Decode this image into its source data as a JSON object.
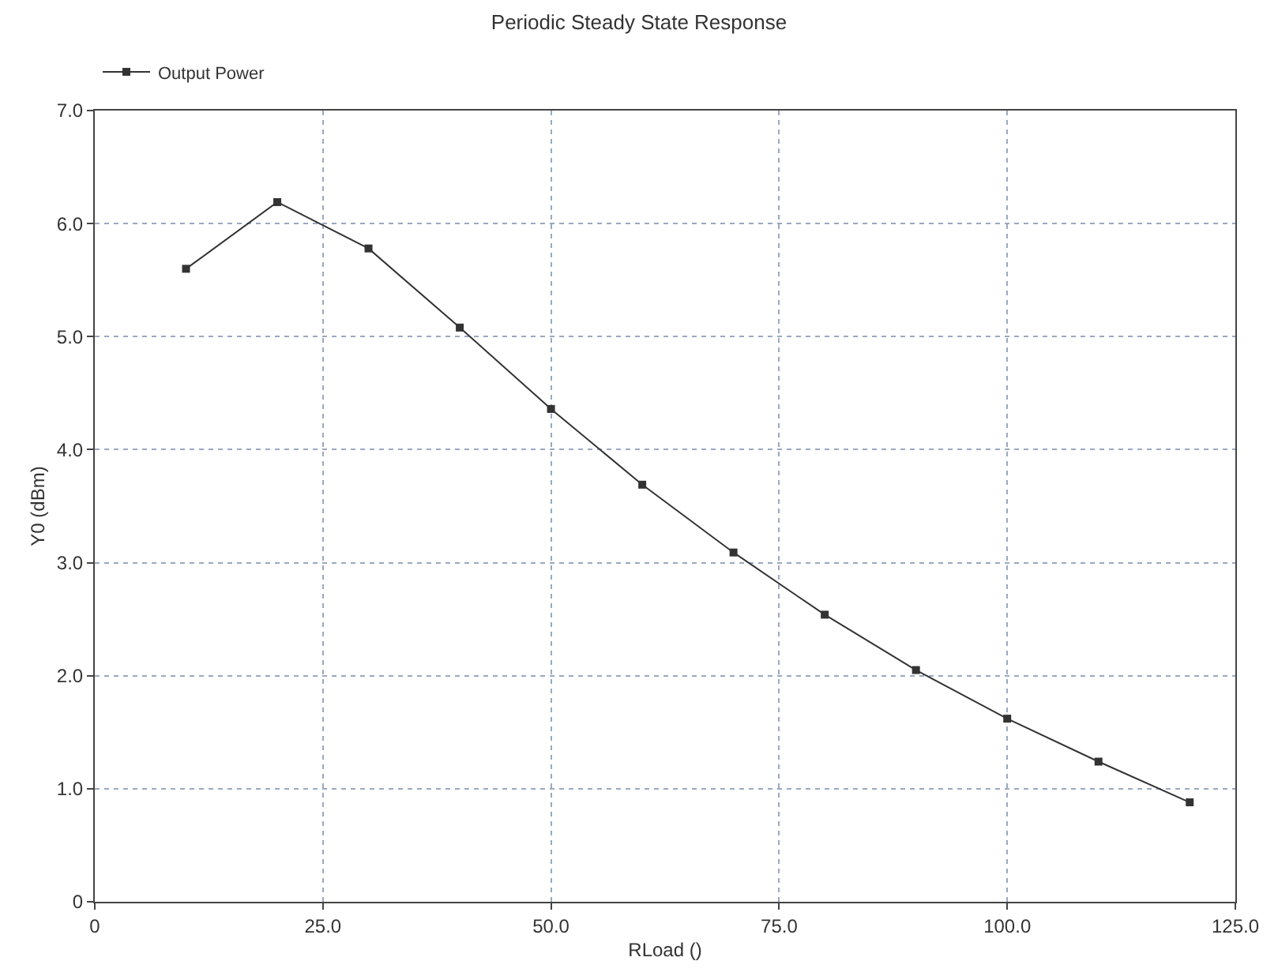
{
  "chart_data": {
    "type": "line",
    "title": "Periodic Steady State Response",
    "xlabel": "RLoad ()",
    "ylabel": "Y0 (dBm)",
    "x": [
      10,
      20,
      30,
      40,
      50,
      60,
      70,
      80,
      90,
      100,
      110,
      120
    ],
    "series": [
      {
        "name": "Output Power",
        "color": "#333333",
        "values": [
          5.6,
          6.19,
          5.78,
          5.08,
          4.36,
          3.69,
          3.09,
          2.54,
          2.05,
          1.62,
          1.24,
          0.88
        ]
      }
    ],
    "xlim": [
      0,
      125
    ],
    "xticks": [
      0,
      {
        "value": 25,
        "label": "25.0"
      },
      {
        "value": 50,
        "label": "50.0"
      },
      {
        "value": 75,
        "label": "75.0"
      },
      {
        "value": 100,
        "label": "100.0"
      },
      {
        "value": 125,
        "label": "125.0"
      }
    ],
    "ylim": [
      0,
      7
    ],
    "yticks": [
      0,
      {
        "value": 1,
        "label": "1.0"
      },
      {
        "value": 2,
        "label": "2.0"
      },
      {
        "value": 3,
        "label": "3.0"
      },
      {
        "value": 4,
        "label": "4.0"
      },
      {
        "value": 5,
        "label": "5.0"
      },
      {
        "value": 6,
        "label": "6.0"
      },
      {
        "value": 7,
        "label": "7.0"
      }
    ],
    "grid": true,
    "legend": "top left",
    "marker": "square",
    "line_style": "solid"
  }
}
